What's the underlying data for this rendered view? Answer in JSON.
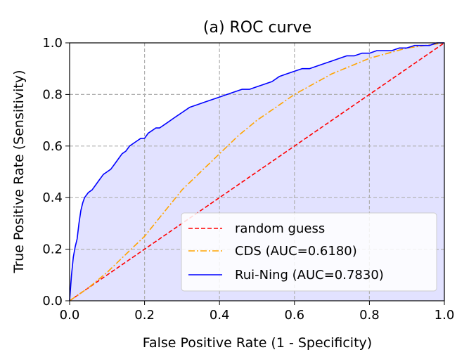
{
  "chart_data": {
    "type": "line",
    "title": "(a) ROC curve",
    "xlabel": "False Positive Rate (1 - Specificity)",
    "ylabel": "True Positive Rate (Sensitivity)",
    "xlim": [
      0,
      1
    ],
    "ylim": [
      0,
      1
    ],
    "xticks": [
      "0.0",
      "0.2",
      "0.4",
      "0.6",
      "0.8",
      "1.0"
    ],
    "yticks": [
      "0.0",
      "0.2",
      "0.4",
      "0.6",
      "0.8",
      "1.0"
    ],
    "grid": true,
    "legend_position": "lower-right",
    "series": [
      {
        "name": "random guess",
        "style": "dashed",
        "color": "#ff0000",
        "x": [
          0,
          1
        ],
        "y": [
          0,
          1
        ]
      },
      {
        "name": "CDS (AUC=0.6180)",
        "style": "dashdot",
        "color": "#ffa500",
        "x": [
          0,
          0.05,
          0.1,
          0.15,
          0.2,
          0.25,
          0.3,
          0.35,
          0.4,
          0.45,
          0.5,
          0.55,
          0.6,
          0.65,
          0.7,
          0.75,
          0.8,
          0.85,
          0.9,
          0.95,
          1.0
        ],
        "y": [
          0,
          0.05,
          0.11,
          0.18,
          0.25,
          0.34,
          0.43,
          0.5,
          0.57,
          0.64,
          0.7,
          0.75,
          0.8,
          0.84,
          0.88,
          0.91,
          0.94,
          0.96,
          0.98,
          0.99,
          1.0
        ]
      },
      {
        "name": "Rui-Ning (AUC=0.7830)",
        "style": "solid",
        "color": "#0000ff",
        "fill": "#e0e0ff",
        "x": [
          0,
          0.005,
          0.01,
          0.015,
          0.02,
          0.025,
          0.03,
          0.035,
          0.04,
          0.05,
          0.06,
          0.07,
          0.08,
          0.09,
          0.1,
          0.11,
          0.12,
          0.13,
          0.14,
          0.15,
          0.16,
          0.17,
          0.18,
          0.19,
          0.2,
          0.21,
          0.22,
          0.23,
          0.24,
          0.26,
          0.28,
          0.3,
          0.32,
          0.34,
          0.36,
          0.38,
          0.4,
          0.42,
          0.44,
          0.46,
          0.48,
          0.5,
          0.52,
          0.54,
          0.56,
          0.58,
          0.6,
          0.62,
          0.64,
          0.66,
          0.68,
          0.7,
          0.72,
          0.74,
          0.76,
          0.78,
          0.8,
          0.82,
          0.84,
          0.86,
          0.88,
          0.9,
          0.92,
          0.94,
          0.96,
          0.98,
          1.0
        ],
        "y": [
          0,
          0.1,
          0.17,
          0.21,
          0.24,
          0.3,
          0.35,
          0.38,
          0.4,
          0.42,
          0.43,
          0.45,
          0.47,
          0.49,
          0.5,
          0.51,
          0.53,
          0.55,
          0.57,
          0.58,
          0.6,
          0.61,
          0.62,
          0.63,
          0.63,
          0.65,
          0.66,
          0.67,
          0.67,
          0.69,
          0.71,
          0.73,
          0.75,
          0.76,
          0.77,
          0.78,
          0.79,
          0.8,
          0.81,
          0.82,
          0.82,
          0.83,
          0.84,
          0.85,
          0.87,
          0.88,
          0.89,
          0.9,
          0.9,
          0.91,
          0.92,
          0.93,
          0.94,
          0.95,
          0.95,
          0.96,
          0.96,
          0.97,
          0.97,
          0.97,
          0.98,
          0.98,
          0.99,
          0.99,
          0.99,
          1.0,
          1.0
        ]
      }
    ]
  }
}
